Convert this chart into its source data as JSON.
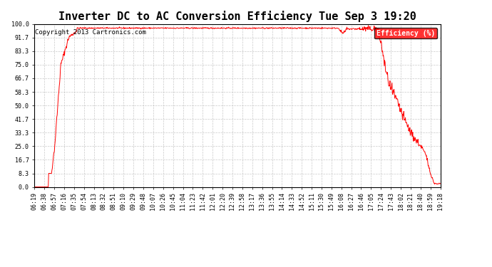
{
  "title": "Inverter DC to AC Conversion Efficiency Tue Sep 3 19:20",
  "copyright": "Copyright 2013 Cartronics.com",
  "legend_label": "Efficiency (%)",
  "legend_bg": "#ff0000",
  "legend_text_color": "#ffffff",
  "line_color": "#ff0000",
  "background_color": "#ffffff",
  "grid_color": "#bbbbbb",
  "ylim": [
    0.0,
    100.0
  ],
  "yticks": [
    0.0,
    8.3,
    16.7,
    25.0,
    33.3,
    41.7,
    50.0,
    58.3,
    66.7,
    75.0,
    83.3,
    91.7,
    100.0
  ],
  "xtick_labels": [
    "06:19",
    "06:38",
    "06:57",
    "07:16",
    "07:35",
    "07:54",
    "08:13",
    "08:32",
    "08:51",
    "09:10",
    "09:29",
    "09:48",
    "10:07",
    "10:26",
    "10:45",
    "11:04",
    "11:23",
    "11:42",
    "12:01",
    "12:20",
    "12:39",
    "12:58",
    "13:17",
    "13:36",
    "13:55",
    "14:14",
    "14:33",
    "14:52",
    "15:11",
    "15:30",
    "15:49",
    "16:08",
    "16:27",
    "16:46",
    "17:05",
    "17:24",
    "17:43",
    "18:02",
    "18:21",
    "18:40",
    "18:59",
    "19:18"
  ],
  "figsize": [
    6.9,
    3.75
  ],
  "dpi": 100,
  "title_fontsize": 11,
  "tick_fontsize": 6,
  "copyright_fontsize": 6.5
}
